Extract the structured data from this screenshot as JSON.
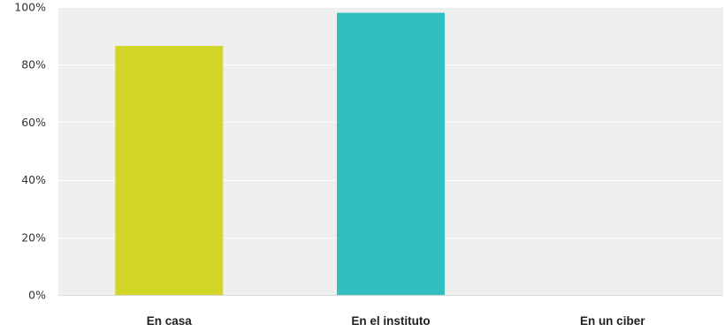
{
  "chart_data": {
    "type": "bar",
    "categories": [
      "En casa",
      "En el instituto",
      "En un ciber"
    ],
    "values": [
      86.5,
      98,
      0
    ],
    "colors": [
      "#d1d628",
      "#32bfc0",
      "#9e9e9e"
    ],
    "ylim": [
      0,
      100
    ],
    "yticks": [
      0,
      20,
      40,
      60,
      80,
      100
    ],
    "ytick_labels": [
      "0%",
      "20%",
      "40%",
      "60%",
      "80%",
      "100%"
    ],
    "title": "",
    "xlabel": "",
    "ylabel": "",
    "grid": true,
    "plot_background": "#efefef",
    "gridline_color": "#ffffff"
  }
}
